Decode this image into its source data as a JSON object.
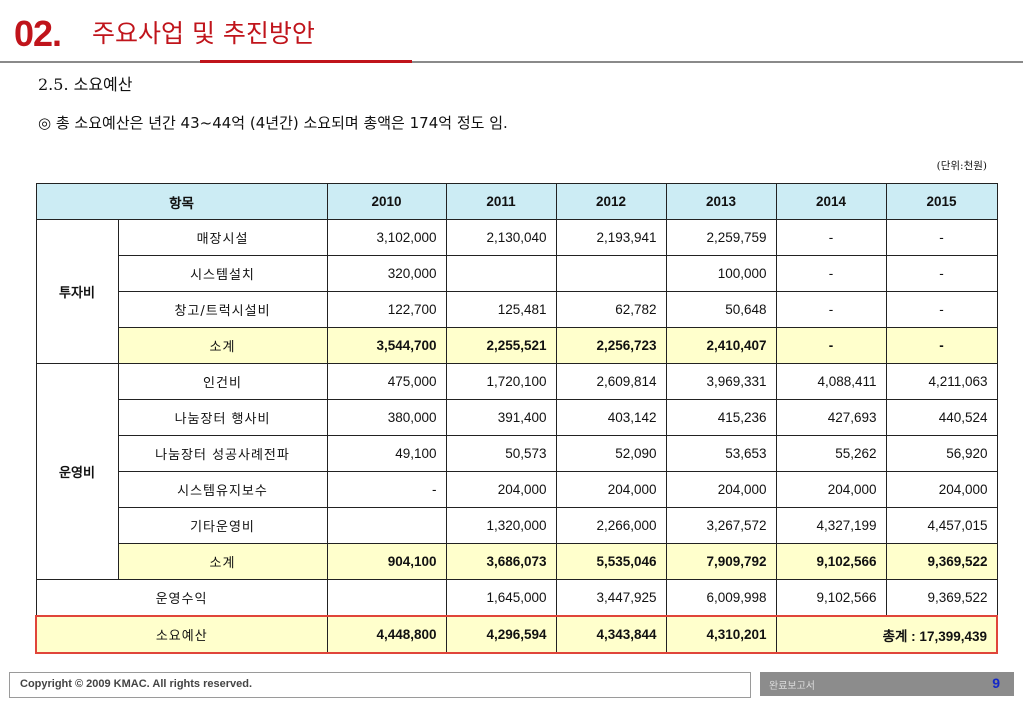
{
  "header": {
    "number": "02.",
    "title": "주요사업 및 추진방안"
  },
  "section": {
    "heading": "2.5. 소요예산",
    "summary": "◎ 총 소요예산은 년간 43~44억 (4년간) 소요되며 총액은 174억 정도 임."
  },
  "unit_note": "(단위:천원)",
  "table": {
    "col_item": "항목",
    "years": [
      "2010",
      "2011",
      "2012",
      "2013",
      "2014",
      "2015"
    ],
    "invest": {
      "category": "투자비",
      "rows": [
        {
          "name": "매장시설",
          "values": [
            "3,102,000",
            "2,130,040",
            "2,193,941",
            "2,259,759",
            "-",
            "-"
          ]
        },
        {
          "name": "시스템설치",
          "values": [
            "320,000",
            "",
            "",
            "100,000",
            "-",
            "-"
          ]
        },
        {
          "name": "창고/트럭시설비",
          "values": [
            "122,700",
            "125,481",
            "62,782",
            "50,648",
            "-",
            "-"
          ]
        }
      ],
      "subtotal": {
        "name": "소계",
        "values": [
          "3,544,700",
          "2,255,521",
          "2,256,723",
          "2,410,407",
          "-",
          "-"
        ]
      }
    },
    "operate": {
      "category": "운영비",
      "rows": [
        {
          "name": "인건비",
          "values": [
            "475,000",
            "1,720,100",
            "2,609,814",
            "3,969,331",
            "4,088,411",
            "4,211,063"
          ]
        },
        {
          "name": "나눔장터 행사비",
          "values": [
            "380,000",
            "391,400",
            "403,142",
            "415,236",
            "427,693",
            "440,524"
          ]
        },
        {
          "name": "나눔장터 성공사례전파",
          "values": [
            "49,100",
            "50,573",
            "52,090",
            "53,653",
            "55,262",
            "56,920"
          ]
        },
        {
          "name": "시스템유지보수",
          "values": [
            "-",
            "204,000",
            "204,000",
            "204,000",
            "204,000",
            "204,000"
          ]
        },
        {
          "name": "기타운영비",
          "values": [
            "",
            "1,320,000",
            "2,266,000",
            "3,267,572",
            "4,327,199",
            "4,457,015"
          ]
        }
      ],
      "subtotal": {
        "name": "소계",
        "values": [
          "904,100",
          "3,686,073",
          "5,535,046",
          "7,909,792",
          "9,102,566",
          "9,369,522"
        ]
      }
    },
    "revenue": {
      "name": "운영수익",
      "values": [
        "",
        "1,645,000",
        "3,447,925",
        "6,009,998",
        "9,102,566",
        "9,369,522"
      ]
    },
    "budget": {
      "name": "소요예산",
      "values": [
        "4,448,800",
        "4,296,594",
        "4,343,844",
        "4,310,201"
      ],
      "grand_total": "총계 : 17,399,439"
    }
  },
  "footer": {
    "copyright": "Copyright © 2009 KMAC. All rights reserved.",
    "report": "완료보고서",
    "page": "9"
  }
}
